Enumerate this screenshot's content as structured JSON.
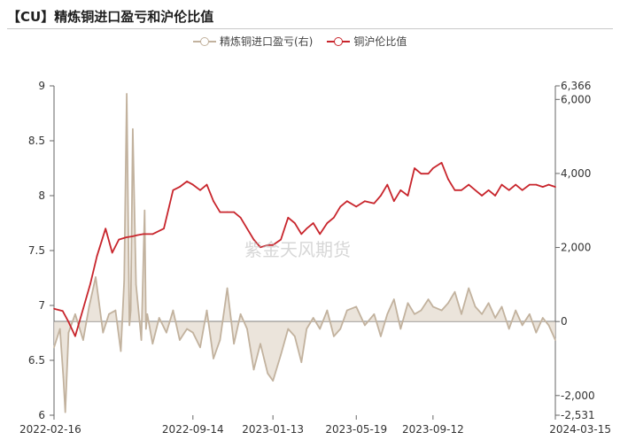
{
  "page": {
    "title": "【CU】精炼铜进口盈亏和沪伦比值"
  },
  "watermark": "紫金天风期货",
  "colors": {
    "ratio": "#c8252c",
    "pnl": "#c2b29e",
    "pnl_fill": "#e6ddd2"
  },
  "legend": [
    {
      "label": "精炼铜进口盈亏(右)",
      "color": "#c2b29e"
    },
    {
      "label": "铜沪伦比值",
      "color": "#c8252c"
    }
  ],
  "chart_data": {
    "type": "line",
    "title": "【CU】精炼铜进口盈亏和沪伦比值",
    "x_tick_labels": [
      "2022-02-16",
      "2022-09-14",
      "2023-01-13",
      "2023-05-19",
      "2023-09-12",
      "2024-03-15"
    ],
    "x_tick_dates": [
      "2022-02-16",
      "2022-09-14",
      "2023-01-13",
      "2023-05-19",
      "2023-09-12",
      "2024-03-15"
    ],
    "y_left": {
      "ticks": [
        6,
        6.5,
        7,
        7.5,
        8,
        8.5,
        9
      ],
      "ylim": [
        6,
        9
      ]
    },
    "y_right": {
      "ticks": [
        "-2,531",
        "-2,000",
        "0",
        "2,000",
        "4,000",
        "6,000",
        "6,366"
      ],
      "ylim": [
        -2531,
        6366
      ]
    },
    "grid": false,
    "legend_position": "top",
    "series": [
      {
        "name": "铜沪伦比值",
        "axis": "left",
        "x": [
          "2022-02-16",
          "2022-03-01",
          "2022-03-10",
          "2022-03-20",
          "2022-04-01",
          "2022-04-12",
          "2022-04-22",
          "2022-05-05",
          "2022-05-15",
          "2022-05-25",
          "2022-06-05",
          "2022-06-15",
          "2022-06-22",
          "2022-07-01",
          "2022-07-15",
          "2022-08-01",
          "2022-08-15",
          "2022-08-25",
          "2022-09-05",
          "2022-09-14",
          "2022-09-25",
          "2022-10-05",
          "2022-10-15",
          "2022-10-25",
          "2022-11-05",
          "2022-11-15",
          "2022-11-25",
          "2022-12-05",
          "2022-12-15",
          "2022-12-25",
          "2023-01-05",
          "2023-01-13",
          "2023-01-25",
          "2023-02-05",
          "2023-02-15",
          "2023-02-25",
          "2023-03-05",
          "2023-03-15",
          "2023-03-25",
          "2023-04-05",
          "2023-04-15",
          "2023-04-25",
          "2023-05-05",
          "2023-05-19",
          "2023-06-01",
          "2023-06-15",
          "2023-06-25",
          "2023-07-05",
          "2023-07-15",
          "2023-07-25",
          "2023-08-05",
          "2023-08-15",
          "2023-08-25",
          "2023-09-05",
          "2023-09-12",
          "2023-09-25",
          "2023-10-05",
          "2023-10-15",
          "2023-10-25",
          "2023-11-05",
          "2023-11-15",
          "2023-11-25",
          "2023-12-05",
          "2023-12-15",
          "2023-12-25",
          "2024-01-05",
          "2024-01-15",
          "2024-01-25",
          "2024-02-05",
          "2024-02-15",
          "2024-02-25",
          "2024-03-05",
          "2024-03-15"
        ],
        "values": [
          6.97,
          6.95,
          6.85,
          6.72,
          6.97,
          7.2,
          7.45,
          7.7,
          7.48,
          7.6,
          7.62,
          7.63,
          7.64,
          7.65,
          7.65,
          7.7,
          8.05,
          8.08,
          8.13,
          8.1,
          8.05,
          8.1,
          7.95,
          7.85,
          7.85,
          7.85,
          7.8,
          7.7,
          7.6,
          7.53,
          7.55,
          7.55,
          7.6,
          7.8,
          7.75,
          7.65,
          7.7,
          7.75,
          7.65,
          7.75,
          7.8,
          7.9,
          7.95,
          7.9,
          7.95,
          7.93,
          8,
          8.1,
          7.95,
          8.05,
          8,
          8.25,
          8.2,
          8.2,
          8.25,
          8.3,
          8.15,
          8.05,
          8.05,
          8.1,
          8.05,
          8.0,
          8.05,
          8.0,
          8.1,
          8.05,
          8.1,
          8.05,
          8.1,
          8.1,
          8.08,
          8.1,
          8.08
        ]
      },
      {
        "name": "精炼铜进口盈亏(右)",
        "axis": "right",
        "x": [
          "2022-02-16",
          "2022-02-25",
          "2022-03-02",
          "2022-03-05",
          "2022-03-10",
          "2022-03-20",
          "2022-04-01",
          "2022-04-10",
          "2022-04-20",
          "2022-05-01",
          "2022-05-10",
          "2022-05-20",
          "2022-05-28",
          "2022-06-02",
          "2022-06-06",
          "2022-06-10",
          "2022-06-12",
          "2022-06-15",
          "2022-06-20",
          "2022-06-28",
          "2022-07-03",
          "2022-07-05",
          "2022-07-07",
          "2022-07-15",
          "2022-07-25",
          "2022-08-05",
          "2022-08-15",
          "2022-08-25",
          "2022-09-05",
          "2022-09-14",
          "2022-09-25",
          "2022-10-05",
          "2022-10-15",
          "2022-10-25",
          "2022-11-05",
          "2022-11-15",
          "2022-11-25",
          "2022-12-05",
          "2022-12-15",
          "2022-12-25",
          "2023-01-05",
          "2023-01-13",
          "2023-01-25",
          "2023-02-05",
          "2023-02-15",
          "2023-02-25",
          "2023-03-05",
          "2023-03-15",
          "2023-03-25",
          "2023-04-05",
          "2023-04-15",
          "2023-04-25",
          "2023-05-05",
          "2023-05-19",
          "2023-06-01",
          "2023-06-15",
          "2023-06-25",
          "2023-07-05",
          "2023-07-15",
          "2023-07-25",
          "2023-08-05",
          "2023-08-15",
          "2023-08-25",
          "2023-09-05",
          "2023-09-12",
          "2023-09-25",
          "2023-10-05",
          "2023-10-15",
          "2023-10-25",
          "2023-11-05",
          "2023-11-15",
          "2023-11-25",
          "2023-12-05",
          "2023-12-15",
          "2023-12-25",
          "2024-01-05",
          "2024-01-15",
          "2024-01-25",
          "2024-02-05",
          "2024-02-15",
          "2024-02-25",
          "2024-03-05",
          "2024-03-15"
        ],
        "values": [
          -700,
          -200,
          -1500,
          -2450,
          -300,
          200,
          -500,
          400,
          1200,
          -300,
          200,
          300,
          -800,
          1100,
          6150,
          -100,
          300,
          5200,
          1000,
          -500,
          3000,
          -200,
          200,
          -600,
          100,
          -300,
          300,
          -500,
          -200,
          -300,
          -700,
          300,
          -1000,
          -500,
          900,
          -600,
          200,
          -200,
          -1300,
          -600,
          -1400,
          -1600,
          -900,
          -200,
          -400,
          -1100,
          -200,
          100,
          -200,
          300,
          -400,
          -200,
          300,
          400,
          -100,
          200,
          -400,
          200,
          600,
          -200,
          500,
          200,
          300,
          600,
          400,
          300,
          500,
          800,
          200,
          900,
          400,
          200,
          500,
          100,
          400,
          -200,
          300,
          -100,
          200,
          -300,
          100,
          -100,
          -500
        ]
      }
    ]
  }
}
